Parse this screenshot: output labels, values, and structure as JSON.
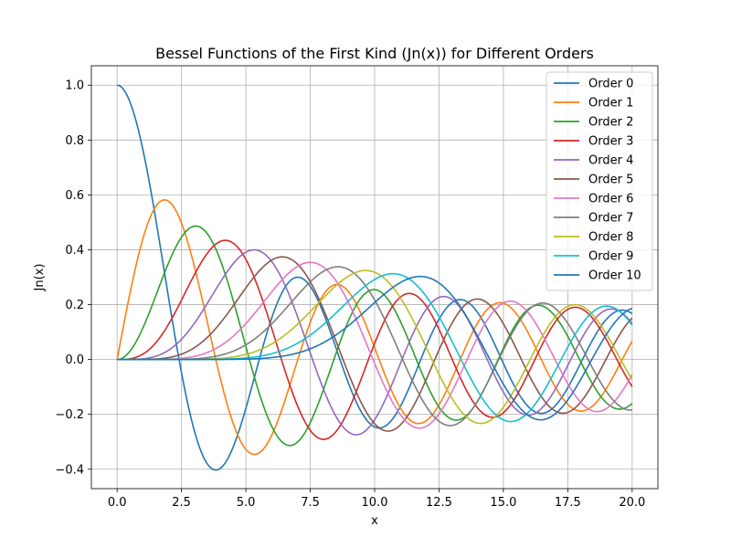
{
  "chart_data": {
    "type": "line",
    "title": "Bessel Functions of the First Kind (Jn(x)) for Different Orders",
    "xlabel": "x",
    "ylabel": "Jn(x)",
    "xlim": [
      -1.0,
      21.0
    ],
    "ylim": [
      -0.4707,
      1.0707
    ],
    "x_ticks": [
      0.0,
      2.5,
      5.0,
      7.5,
      10.0,
      12.5,
      15.0,
      17.5,
      20.0
    ],
    "x_tick_labels": [
      "0.0",
      "2.5",
      "5.0",
      "7.5",
      "10.0",
      "12.5",
      "15.0",
      "17.5",
      "20.0"
    ],
    "y_ticks": [
      -0.4,
      -0.2,
      0.0,
      0.2,
      0.4,
      0.6,
      0.8,
      1.0
    ],
    "y_tick_labels": [
      "−0.4",
      "−0.2",
      "0.0",
      "0.2",
      "0.4",
      "0.6",
      "0.8",
      "1.0"
    ],
    "grid": true,
    "legend_position": "upper-right",
    "function": "bessel_jn",
    "x_range": [
      0.0,
      20.0
    ],
    "series": [
      {
        "name": "Order 0",
        "order": 0,
        "color": "#1f77b4"
      },
      {
        "name": "Order 1",
        "order": 1,
        "color": "#ff7f0e"
      },
      {
        "name": "Order 2",
        "order": 2,
        "color": "#2ca02c"
      },
      {
        "name": "Order 3",
        "order": 3,
        "color": "#d62728"
      },
      {
        "name": "Order 4",
        "order": 4,
        "color": "#9467bd"
      },
      {
        "name": "Order 5",
        "order": 5,
        "color": "#8c564b"
      },
      {
        "name": "Order 6",
        "order": 6,
        "color": "#e377c2"
      },
      {
        "name": "Order 7",
        "order": 7,
        "color": "#7f7f7f"
      },
      {
        "name": "Order 8",
        "order": 8,
        "color": "#bcbd22"
      },
      {
        "name": "Order 9",
        "order": 9,
        "color": "#17becf"
      },
      {
        "name": "Order 10",
        "order": 10,
        "color": "#1f77b4"
      }
    ]
  }
}
